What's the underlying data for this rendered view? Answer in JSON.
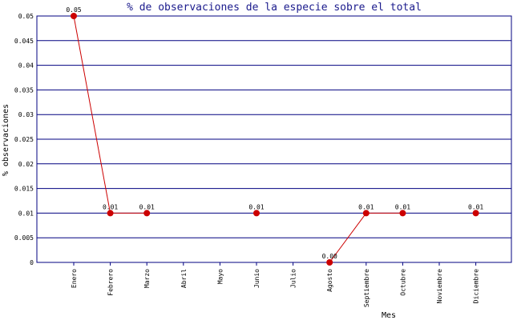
{
  "chart_data": {
    "type": "line",
    "title": "% de observaciones de la especie sobre el total",
    "xlabel": "Mes",
    "ylabel": "% observaciones",
    "categories": [
      "Enero",
      "Febrero",
      "Marzo",
      "Abril",
      "Mayo",
      "Junio",
      "Julio",
      "Agosto",
      "Septiembre",
      "Octubre",
      "Noviembre",
      "Diciembre"
    ],
    "ylim": [
      0,
      0.05
    ],
    "yticks": [
      "0",
      "0.005",
      "0.01",
      "0.015",
      "0.02",
      "0.025",
      "0.03",
      "0.035",
      "0.04",
      "0.045",
      "0.05"
    ],
    "grid": true,
    "series": [
      {
        "color": "#cc0000",
        "points": [
          {
            "x": "Enero",
            "y": 0.05,
            "label": "0.05"
          },
          {
            "x": "Febrero",
            "y": 0.01,
            "label": "0.01"
          },
          {
            "x": "Marzo",
            "y": 0.01,
            "label": "0.01"
          },
          {
            "x": "Junio",
            "y": 0.01,
            "label": "0.01"
          },
          {
            "x": "Agosto",
            "y": 0.0,
            "label": "0.00"
          },
          {
            "x": "Septiembre",
            "y": 0.01,
            "label": "0.01"
          },
          {
            "x": "Octubre",
            "y": 0.01,
            "label": "0.01"
          },
          {
            "x": "Diciembre",
            "y": 0.01,
            "label": "0.01"
          }
        ],
        "segments": [
          [
            "Enero",
            "Febrero"
          ],
          [
            "Febrero",
            "Marzo"
          ],
          [
            "Agosto",
            "Septiembre"
          ],
          [
            "Septiembre",
            "Octubre"
          ]
        ]
      }
    ],
    "colors": {
      "grid": "#000080",
      "axis": "#000080",
      "title": "#1a1a8c",
      "line": "#cc0000"
    }
  }
}
